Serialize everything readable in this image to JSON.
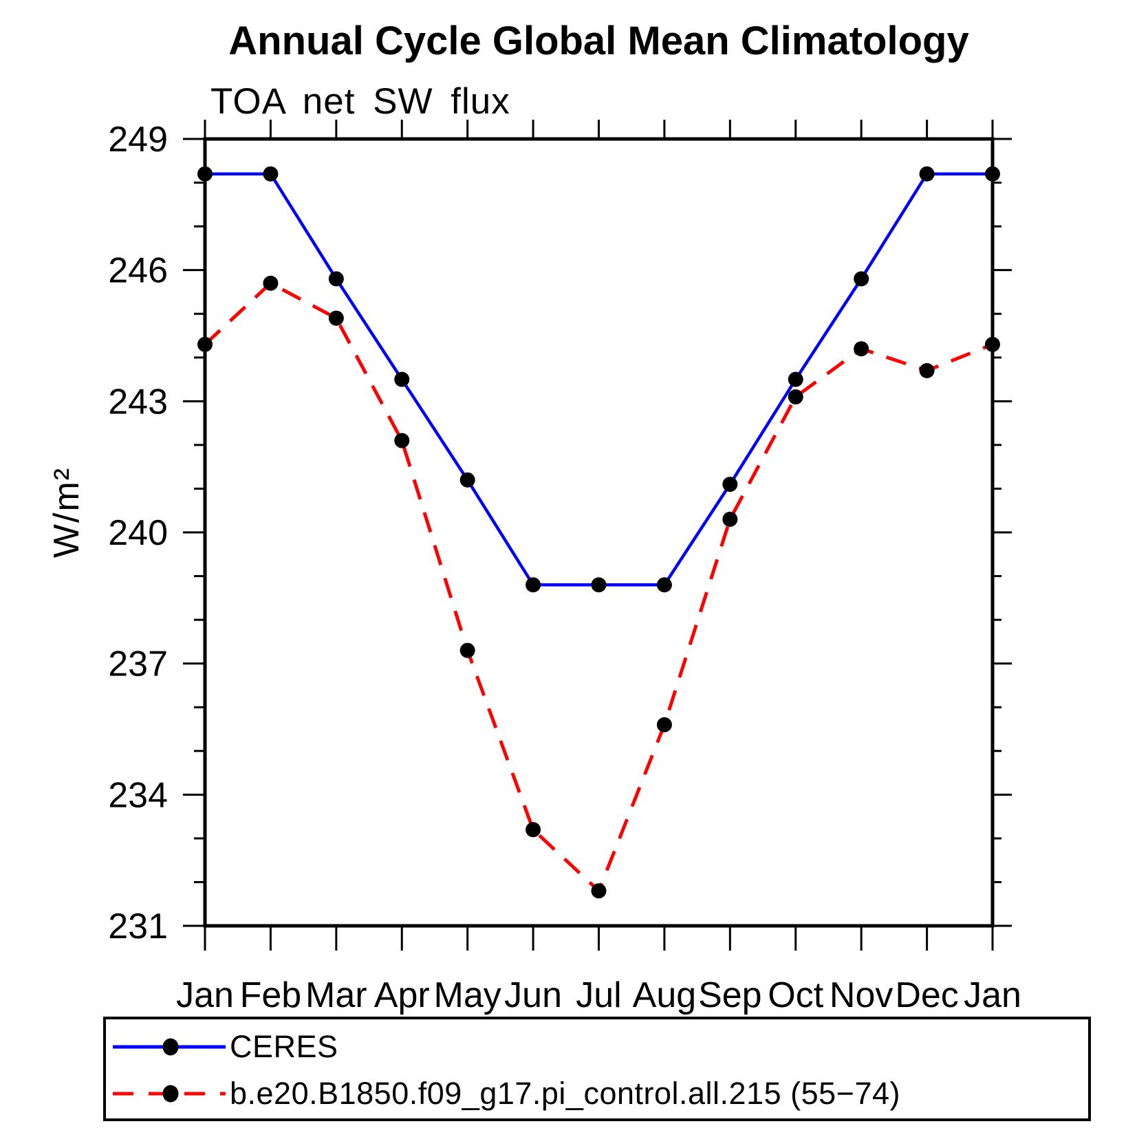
{
  "title": "Annual Cycle Global Mean Climatology",
  "subtitle": "TOA net SW flux",
  "ylabel": "W/m²",
  "chart_data": {
    "type": "line",
    "categories": [
      "Jan",
      "Feb",
      "Mar",
      "Apr",
      "May",
      "Jun",
      "Jul",
      "Aug",
      "Sep",
      "Oct",
      "Nov",
      "Dec",
      "Jan"
    ],
    "series": [
      {
        "name": "CERES",
        "color": "#0000ff",
        "line_style": "solid",
        "marker": "black-filled-circle",
        "values": [
          248.2,
          248.2,
          245.8,
          243.5,
          241.2,
          238.8,
          238.8,
          238.8,
          241.1,
          243.5,
          245.8,
          248.2,
          248.2
        ]
      },
      {
        "name": "b.e20.B1850.f09_g17.pi_control.all.215 (55−74)",
        "color": "#ff0000",
        "line_style": "dashed",
        "marker": "black-filled-circle",
        "values": [
          244.3,
          245.7,
          244.9,
          242.1,
          237.3,
          233.2,
          231.8,
          235.6,
          240.3,
          243.1,
          244.2,
          243.7,
          244.3
        ]
      }
    ],
    "xlabel": "",
    "ylabel": "W/m²",
    "ylim": [
      231,
      249
    ],
    "yticks_major": [
      231,
      234,
      237,
      240,
      243,
      246,
      249
    ],
    "ytick_minor_step": 1,
    "grid": false,
    "legend_position": "bottom-left-box"
  }
}
